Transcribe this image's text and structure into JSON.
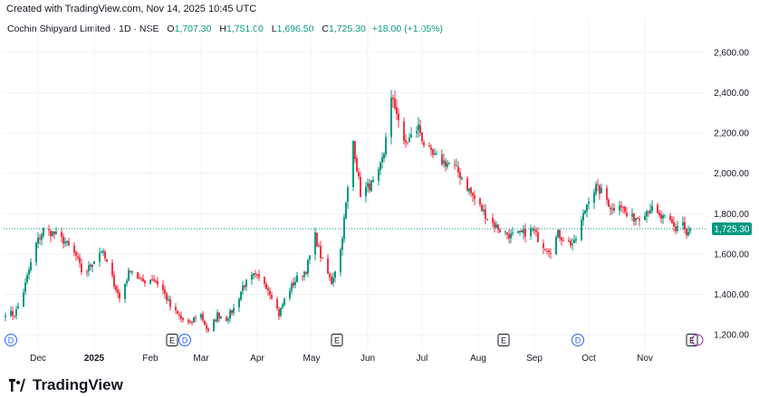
{
  "header": {
    "created": "Created with TradingView.com, Nov 14, 2025 10:45 UTC"
  },
  "legend": {
    "symbol": "Cochin Shipyard Limited · 1D · NSE",
    "o_label": "O",
    "o": "1,707.30",
    "h_label": "H",
    "h": "1,751.00",
    "l_label": "L",
    "l": "1,696.50",
    "c_label": "C",
    "c": "1,725.30",
    "change": "+18.00 (+1.05%)"
  },
  "brand": {
    "name": "TradingView"
  },
  "colors": {
    "up": "#089981",
    "down": "#f23645",
    "price_line": "#089981",
    "grid": "#f0f3fa",
    "text": "#131722"
  },
  "chart_data": {
    "type": "candlestick",
    "x_ticks": [
      {
        "label": "Dec",
        "day": 19
      },
      {
        "label": "2025",
        "day": 50
      },
      {
        "label": "Feb",
        "day": 81
      },
      {
        "label": "Mar",
        "day": 109
      },
      {
        "label": "Apr",
        "day": 140
      },
      {
        "label": "May",
        "day": 170
      },
      {
        "label": "Jun",
        "day": 201
      },
      {
        "label": "Jul",
        "day": 231
      },
      {
        "label": "Aug",
        "day": 262
      },
      {
        "label": "Sep",
        "day": 293
      },
      {
        "label": "Oct",
        "day": 323
      },
      {
        "label": "Nov",
        "day": 354
      }
    ],
    "y_ticks": [
      1200,
      1400,
      1600,
      1800,
      2000,
      2200,
      2400,
      2600
    ],
    "y_tick_labels": [
      "1,200.00",
      "1,400.00",
      "1,600.00",
      "1,800.00",
      "2,000.00",
      "2,200.00",
      "2,400.00",
      "2,600.00"
    ],
    "ylim": [
      1120,
      2680
    ],
    "xlim": [
      0,
      388
    ],
    "last_price": 1725.3,
    "last_price_label": "1,725.30",
    "events": [
      {
        "type": "D",
        "day": 4
      },
      {
        "type": "E",
        "day": 93
      },
      {
        "type": "D",
        "day": 100
      },
      {
        "type": "E",
        "day": 184
      },
      {
        "type": "E",
        "day": 276
      },
      {
        "type": "D",
        "day": 317
      },
      {
        "type": "E",
        "day": 380
      }
    ],
    "keypoints": [
      [
        1,
        1310
      ],
      [
        6,
        1300
      ],
      [
        10,
        1380
      ],
      [
        14,
        1520
      ],
      [
        18,
        1650
      ],
      [
        22,
        1720
      ],
      [
        28,
        1700
      ],
      [
        34,
        1660
      ],
      [
        40,
        1590
      ],
      [
        44,
        1490
      ],
      [
        49,
        1560
      ],
      [
        54,
        1620
      ],
      [
        58,
        1530
      ],
      [
        64,
        1380
      ],
      [
        70,
        1530
      ],
      [
        76,
        1460
      ],
      [
        82,
        1480
      ],
      [
        87,
        1440
      ],
      [
        92,
        1340
      ],
      [
        98,
        1280
      ],
      [
        103,
        1250
      ],
      [
        108,
        1320
      ],
      [
        113,
        1210
      ],
      [
        118,
        1300
      ],
      [
        123,
        1280
      ],
      [
        128,
        1340
      ],
      [
        132,
        1440
      ],
      [
        138,
        1490
      ],
      [
        144,
        1460
      ],
      [
        149,
        1380
      ],
      [
        152,
        1300
      ],
      [
        156,
        1400
      ],
      [
        162,
        1480
      ],
      [
        167,
        1520
      ],
      [
        172,
        1690
      ],
      [
        176,
        1560
      ],
      [
        181,
        1460
      ],
      [
        186,
        1620
      ],
      [
        190,
        1920
      ],
      [
        193,
        2160
      ],
      [
        197,
        1900
      ],
      [
        202,
        1940
      ],
      [
        206,
        1960
      ],
      [
        210,
        2100
      ],
      [
        213,
        2380
      ],
      [
        217,
        2310
      ],
      [
        221,
        2140
      ],
      [
        225,
        2180
      ],
      [
        229,
        2230
      ],
      [
        232,
        2150
      ],
      [
        236,
        2090
      ],
      [
        242,
        2060
      ],
      [
        248,
        2040
      ],
      [
        253,
        1980
      ],
      [
        258,
        1900
      ],
      [
        264,
        1820
      ],
      [
        269,
        1760
      ],
      [
        274,
        1720
      ],
      [
        280,
        1690
      ],
      [
        286,
        1700
      ],
      [
        292,
        1720
      ],
      [
        297,
        1650
      ],
      [
        302,
        1620
      ],
      [
        306,
        1700
      ],
      [
        311,
        1660
      ],
      [
        315,
        1650
      ],
      [
        319,
        1760
      ],
      [
        323,
        1880
      ],
      [
        327,
        1930
      ],
      [
        331,
        1900
      ],
      [
        336,
        1820
      ],
      [
        340,
        1860
      ],
      [
        345,
        1770
      ],
      [
        351,
        1790
      ],
      [
        357,
        1830
      ],
      [
        362,
        1780
      ],
      [
        367,
        1770
      ],
      [
        371,
        1720
      ],
      [
        374,
        1790
      ],
      [
        377,
        1690
      ],
      [
        380,
        1725
      ]
    ]
  }
}
